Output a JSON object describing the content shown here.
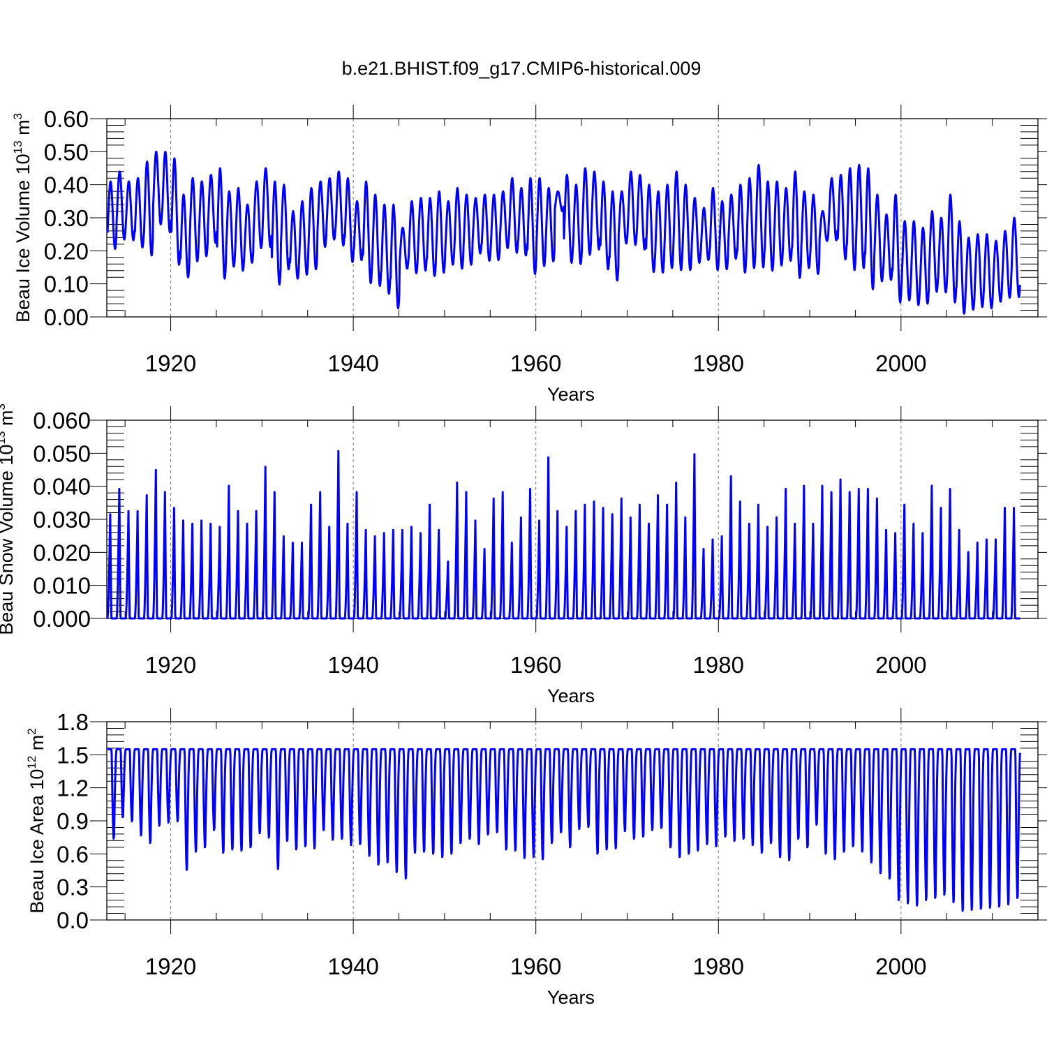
{
  "title": "b.e21.BHIST.f09_g17.CMIP6-historical.009",
  "chart_data": [
    {
      "type": "line",
      "panel": "ice-volume",
      "ylabel_prefix": "Beau Ice Volume 10",
      "ylabel_exp": "13",
      "ylabel_unit": " m",
      "ylabel_unit_exp": "3",
      "xlabel": "Years",
      "xlim": [
        1913,
        2015
      ],
      "ylim": [
        0,
        0.6
      ],
      "xticks": [
        1920,
        1940,
        1960,
        1980,
        2000
      ],
      "xtick_labels": [
        "1920",
        "1940",
        "1960",
        "1980",
        "2000"
      ],
      "yticks": [
        0,
        0.1,
        0.2,
        0.3,
        0.4,
        0.5,
        0.6
      ],
      "ytick_labels": [
        "0.00",
        "0.10",
        "0.20",
        "0.30",
        "0.40",
        "0.50",
        "0.60"
      ],
      "grid": "dashed vertical at labeled years",
      "series": [
        {
          "name": "Beau Ice Volume",
          "color": "#0000ff",
          "annual_max": [
            0.41,
            0.44,
            0.41,
            0.42,
            0.47,
            0.5,
            0.5,
            0.48,
            0.37,
            0.42,
            0.41,
            0.43,
            0.45,
            0.38,
            0.39,
            0.34,
            0.41,
            0.45,
            0.41,
            0.4,
            0.32,
            0.35,
            0.39,
            0.41,
            0.42,
            0.44,
            0.42,
            0.35,
            0.41,
            0.37,
            0.34,
            0.34,
            0.27,
            0.35,
            0.36,
            0.36,
            0.38,
            0.35,
            0.39,
            0.37,
            0.36,
            0.37,
            0.37,
            0.38,
            0.42,
            0.39,
            0.42,
            0.42,
            0.39,
            0.38,
            0.43,
            0.4,
            0.45,
            0.44,
            0.41,
            0.38,
            0.38,
            0.44,
            0.43,
            0.4,
            0.38,
            0.4,
            0.44,
            0.4,
            0.36,
            0.33,
            0.39,
            0.35,
            0.37,
            0.4,
            0.42,
            0.46,
            0.41,
            0.41,
            0.39,
            0.44,
            0.38,
            0.37,
            0.32,
            0.42,
            0.43,
            0.45,
            0.46,
            0.45,
            0.37,
            0.31,
            0.37,
            0.29,
            0.29,
            0.27,
            0.32,
            0.3,
            0.37,
            0.29,
            0.24,
            0.25,
            0.25,
            0.23,
            0.26,
            0.3
          ],
          "annual_min": [
            0.2,
            0.24,
            0.23,
            0.2,
            0.18,
            0.28,
            0.26,
            0.18,
            0.11,
            0.17,
            0.18,
            0.22,
            0.13,
            0.15,
            0.15,
            0.15,
            0.2,
            0.22,
            0.1,
            0.16,
            0.11,
            0.12,
            0.14,
            0.21,
            0.23,
            0.22,
            0.18,
            0.16,
            0.11,
            0.1,
            0.07,
            0.04,
            0.13,
            0.13,
            0.14,
            0.12,
            0.14,
            0.15,
            0.15,
            0.16,
            0.19,
            0.17,
            0.17,
            0.2,
            0.2,
            0.18,
            0.13,
            0.16,
            0.17,
            0.31,
            0.17,
            0.15,
            0.19,
            0.21,
            0.15,
            0.11,
            0.21,
            0.22,
            0.21,
            0.14,
            0.13,
            0.14,
            0.15,
            0.15,
            0.17,
            0.16,
            0.15,
            0.14,
            0.17,
            0.13,
            0.14,
            0.16,
            0.14,
            0.16,
            0.16,
            0.13,
            0.15,
            0.14,
            0.21,
            0.23,
            0.17,
            0.14,
            0.15,
            0.1,
            0.12,
            0.1,
            0.06,
            0.05,
            0.04,
            0.03,
            0.08,
            0.06,
            0.06,
            0.02,
            0.02,
            0.03,
            0.03,
            0.04,
            0.05,
            0.06
          ]
        }
      ]
    },
    {
      "type": "line",
      "panel": "snow-volume",
      "ylabel_prefix": "Beau Snow Volume 10",
      "ylabel_exp": "13",
      "ylabel_unit": " m",
      "ylabel_unit_exp": "3",
      "xlabel": "Years",
      "xlim": [
        1913,
        2015
      ],
      "ylim": [
        0,
        0.06
      ],
      "xticks": [
        1920,
        1940,
        1960,
        1980,
        2000
      ],
      "xtick_labels": [
        "1920",
        "1940",
        "1960",
        "1980",
        "2000"
      ],
      "yticks": [
        0,
        0.01,
        0.02,
        0.03,
        0.04,
        0.05,
        0.06
      ],
      "ytick_labels": [
        "0.000",
        "0.010",
        "0.020",
        "0.030",
        "0.040",
        "0.050",
        "0.060"
      ],
      "grid": "dashed vertical at labeled years",
      "series": [
        {
          "name": "Beau Snow Volume",
          "color": "#0000ff",
          "annual_max": [
            0.033,
            0.041,
            0.034,
            0.034,
            0.039,
            0.047,
            0.04,
            0.035,
            0.031,
            0.03,
            0.031,
            0.03,
            0.029,
            0.042,
            0.034,
            0.03,
            0.034,
            0.048,
            0.04,
            0.026,
            0.024,
            0.024,
            0.036,
            0.04,
            0.029,
            0.053,
            0.03,
            0.04,
            0.028,
            0.026,
            0.027,
            0.028,
            0.028,
            0.029,
            0.027,
            0.036,
            0.028,
            0.018,
            0.043,
            0.04,
            0.031,
            0.022,
            0.038,
            0.04,
            0.024,
            0.032,
            0.041,
            0.031,
            0.051,
            0.034,
            0.029,
            0.034,
            0.036,
            0.037,
            0.035,
            0.033,
            0.038,
            0.032,
            0.036,
            0.03,
            0.039,
            0.036,
            0.043,
            0.032,
            0.052,
            0.022,
            0.025,
            0.026,
            0.045,
            0.037,
            0.03,
            0.036,
            0.029,
            0.032,
            0.041,
            0.03,
            0.042,
            0.03,
            0.042,
            0.04,
            0.044,
            0.04,
            0.041,
            0.041,
            0.038,
            0.028,
            0.027,
            0.036,
            0.03,
            0.027,
            0.042,
            0.035,
            0.041,
            0.028,
            0.021,
            0.024,
            0.025,
            0.025,
            0.035,
            0.035
          ],
          "annual_min": [
            0.0,
            0.0,
            0.0,
            0.0,
            0.0,
            0.0,
            0.0,
            0.0,
            0.0,
            0.0,
            0.0,
            0.0,
            0.0,
            0.0,
            0.0,
            0.0,
            0.0,
            0.0,
            0.0,
            0.0,
            0.0,
            0.0,
            0.0,
            0.0,
            0.0,
            0.0,
            0.0,
            0.0,
            0.0,
            0.0,
            0.0,
            0.0,
            0.0,
            0.0,
            0.0,
            0.0,
            0.0,
            0.0,
            0.0,
            0.0,
            0.0,
            0.0,
            0.0,
            0.0,
            0.0,
            0.0,
            0.0,
            0.0,
            0.0,
            0.0,
            0.0,
            0.0,
            0.0,
            0.0,
            0.0,
            0.0,
            0.0,
            0.0,
            0.0,
            0.0,
            0.0,
            0.0,
            0.0,
            0.0,
            0.0,
            0.0,
            0.0,
            0.0,
            0.0,
            0.0,
            0.0,
            0.0,
            0.0,
            0.0,
            0.0,
            0.0,
            0.0,
            0.0,
            0.0,
            0.0,
            0.0,
            0.0,
            0.0,
            0.0,
            0.0,
            0.0,
            0.0,
            0.0,
            0.0,
            0.0,
            0.0,
            0.0,
            0.0,
            0.0,
            0.0,
            0.0,
            0.0,
            0.0,
            0.0,
            0.0
          ]
        }
      ]
    },
    {
      "type": "line",
      "panel": "ice-area",
      "ylabel_prefix": "Beau Ice Area 10",
      "ylabel_exp": "12",
      "ylabel_unit": " m",
      "ylabel_unit_exp": "2",
      "xlabel": "Years",
      "xlim": [
        1913,
        2015
      ],
      "ylim": [
        0,
        1.8
      ],
      "xticks": [
        1920,
        1940,
        1960,
        1980,
        2000
      ],
      "xtick_labels": [
        "1920",
        "1940",
        "1960",
        "1980",
        "2000"
      ],
      "yticks": [
        0,
        0.3,
        0.6,
        0.9,
        1.2,
        1.5,
        1.8
      ],
      "ytick_labels": [
        "0.0",
        "0.3",
        "0.6",
        "0.9",
        "1.2",
        "1.5",
        "1.8"
      ],
      "grid": "dashed vertical at labeled years",
      "series": [
        {
          "name": "Beau Ice Area",
          "color": "#0000ff",
          "annual_max": [
            1.55,
            1.55,
            1.55,
            1.55,
            1.55,
            1.55,
            1.55,
            1.55,
            1.55,
            1.55,
            1.55,
            1.55,
            1.55,
            1.55,
            1.55,
            1.55,
            1.55,
            1.55,
            1.55,
            1.55,
            1.55,
            1.55,
            1.55,
            1.55,
            1.55,
            1.55,
            1.55,
            1.55,
            1.55,
            1.55,
            1.55,
            1.55,
            1.55,
            1.55,
            1.55,
            1.55,
            1.55,
            1.55,
            1.55,
            1.55,
            1.55,
            1.55,
            1.55,
            1.55,
            1.55,
            1.55,
            1.55,
            1.55,
            1.55,
            1.55,
            1.55,
            1.55,
            1.55,
            1.55,
            1.55,
            1.55,
            1.55,
            1.55,
            1.55,
            1.55,
            1.55,
            1.55,
            1.55,
            1.55,
            1.55,
            1.55,
            1.55,
            1.55,
            1.55,
            1.55,
            1.55,
            1.55,
            1.55,
            1.55,
            1.55,
            1.55,
            1.55,
            1.55,
            1.55,
            1.55,
            1.55,
            1.55,
            1.55,
            1.55,
            1.55,
            1.55,
            1.55,
            1.55,
            1.55,
            1.55,
            1.55,
            1.55,
            1.55,
            1.55,
            1.55,
            1.55,
            1.55,
            1.55,
            1.55,
            1.55
          ],
          "annual_min": [
            0.72,
            0.92,
            0.88,
            0.75,
            0.68,
            0.84,
            0.87,
            0.88,
            0.43,
            0.6,
            0.64,
            0.8,
            0.59,
            0.62,
            0.61,
            0.64,
            0.77,
            0.73,
            0.44,
            0.7,
            0.62,
            0.65,
            0.63,
            0.8,
            0.71,
            0.72,
            0.66,
            0.67,
            0.56,
            0.48,
            0.5,
            0.41,
            0.35,
            0.59,
            0.6,
            0.58,
            0.55,
            0.58,
            0.68,
            0.72,
            0.67,
            0.76,
            0.78,
            0.62,
            0.61,
            0.54,
            0.55,
            0.53,
            0.68,
            0.78,
            0.64,
            0.81,
            0.83,
            0.58,
            0.62,
            0.63,
            0.79,
            0.72,
            0.74,
            0.8,
            0.82,
            0.64,
            0.55,
            0.58,
            0.61,
            0.67,
            0.65,
            0.74,
            0.7,
            0.72,
            0.66,
            0.59,
            0.68,
            0.55,
            0.52,
            0.72,
            0.64,
            0.85,
            0.58,
            0.53,
            0.6,
            0.65,
            0.6,
            0.5,
            0.4,
            0.35,
            0.15,
            0.12,
            0.1,
            0.15,
            0.17,
            0.2,
            0.13,
            0.05,
            0.06,
            0.07,
            0.08,
            0.09,
            0.11,
            0.17
          ]
        }
      ]
    }
  ]
}
